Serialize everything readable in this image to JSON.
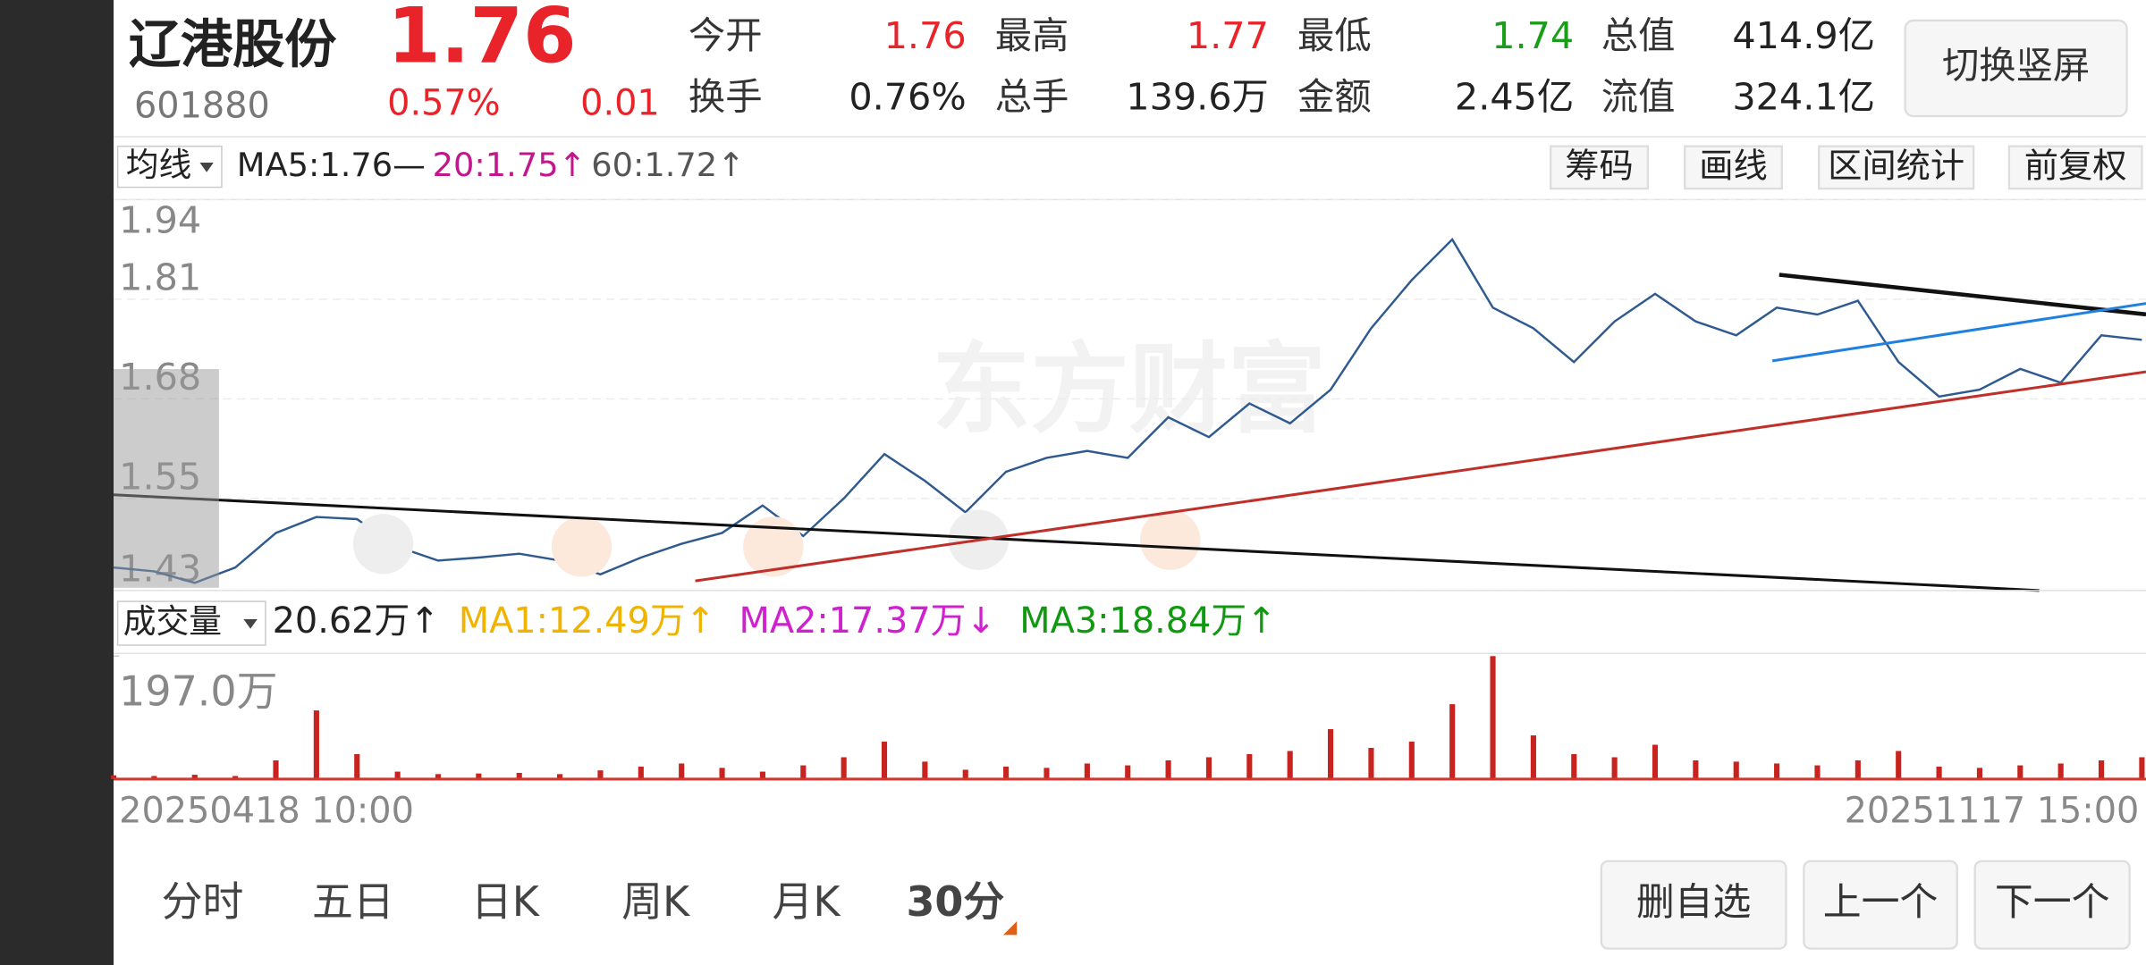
{
  "header": {
    "name": "辽港股份",
    "code": "601880",
    "price": "1.76",
    "change_pct": "0.57%",
    "change": "0.01",
    "stats": [
      {
        "label": "今开",
        "value": "1.76"
      },
      {
        "label": "最高",
        "value": "1.77"
      },
      {
        "label": "最低",
        "value": "1.74"
      },
      {
        "label": "总值",
        "value": "414.9亿"
      },
      {
        "label": "换手",
        "value": "0.76%"
      },
      {
        "label": "总手",
        "value": "139.6万"
      },
      {
        "label": "金额",
        "value": "2.45亿"
      },
      {
        "label": "流值",
        "value": "324.1亿"
      }
    ],
    "button": "切换竖屏"
  },
  "ma_bar": {
    "selector": "均线",
    "items": [
      "MA5:1.76—",
      "20:1.75↑",
      "60:1.72↑"
    ],
    "tools": [
      "筹码",
      "画线",
      "区间统计",
      "前复权"
    ]
  },
  "watermark": "东方财富",
  "volume_bar": {
    "selector": "成交量",
    "items": [
      "20.62万↑",
      "MA1:12.49万↑",
      "MA2:17.37万↓",
      "MA3:18.84万↑"
    ]
  },
  "chart_data": [
    {
      "type": "line",
      "color": "#2f5a8f",
      "categories": [
        "20250418 10:00",
        null,
        null,
        null,
        null,
        null,
        null,
        null,
        null,
        null,
        null,
        null,
        null,
        null,
        null,
        null,
        null,
        null,
        null,
        null,
        null,
        null,
        null,
        null,
        null,
        null,
        null,
        null,
        null,
        null,
        null,
        null,
        null,
        null,
        null,
        null,
        null,
        null,
        null,
        null,
        null,
        null,
        null,
        null,
        null,
        null,
        null,
        null,
        null,
        null,
        "20251117 15:00"
      ],
      "values": [
        1.46,
        1.455,
        1.44,
        1.46,
        1.505,
        1.526,
        1.523,
        1.487,
        1.469,
        1.473,
        1.478,
        1.469,
        1.451,
        1.473,
        1.491,
        1.505,
        1.541,
        1.501,
        1.55,
        1.608,
        1.573,
        1.532,
        1.585,
        1.603,
        1.612,
        1.603,
        1.656,
        1.63,
        1.674,
        1.648,
        1.692,
        1.772,
        1.835,
        1.888,
        1.799,
        1.772,
        1.728,
        1.781,
        1.817,
        1.781,
        1.763,
        1.799,
        1.79,
        1.808,
        1.728,
        1.683,
        1.692,
        1.719,
        1.701,
        1.763,
        1.757
      ],
      "ylim": [
        1.43,
        1.94
      ],
      "yticks": [
        1.94,
        1.81,
        1.68,
        1.55,
        1.43
      ],
      "grid": true
    },
    {
      "type": "bar",
      "color": "#c8231e",
      "values": [
        6,
        5,
        7,
        5,
        30,
        110,
        40,
        12,
        8,
        9,
        10,
        8,
        14,
        20,
        25,
        18,
        12,
        22,
        35,
        60,
        28,
        15,
        20,
        18,
        25,
        22,
        30,
        35,
        40,
        45,
        80,
        50,
        60,
        120,
        197,
        70,
        40,
        35,
        55,
        30,
        28,
        25,
        22,
        30,
        45,
        20,
        18,
        22,
        25,
        30,
        35
      ],
      "ylim": [
        0,
        197
      ],
      "yticks": [
        {
          "value": 197,
          "label": "197.0万"
        }
      ]
    }
  ],
  "bottom_tabs": {
    "tabs": [
      "分时",
      "五日",
      "日K",
      "周K",
      "月K",
      "30分"
    ],
    "buttons": [
      "删自选",
      "上一个",
      "下一个"
    ]
  }
}
